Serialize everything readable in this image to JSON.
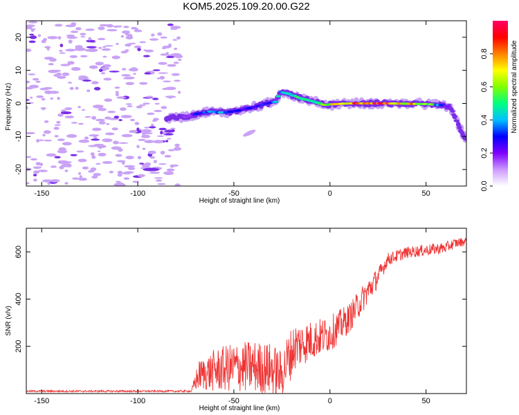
{
  "title": "KOM5.2025.109.20.00.G22",
  "colors": {
    "snr_line": "#ee3333",
    "spectrum_light": "#c9a3f5",
    "spectrum_mid": "#7a2ee8",
    "colorbar_stops": [
      "#ffffff",
      "#cc99ff",
      "#7f00ff",
      "#0000ff",
      "#00c0ff",
      "#00ff80",
      "#80ff00",
      "#ffff00",
      "#ff8000",
      "#ff0000",
      "#ff0066"
    ]
  },
  "chart_data": [
    {
      "type": "heatmap",
      "title": "KOM5.2025.109.20.00.G22",
      "xlabel": "Height of straight line (km)",
      "ylabel": "Frequency (Hz)",
      "xlim": [
        -158,
        71
      ],
      "ylim": [
        -25,
        25
      ],
      "xticks": [
        -150,
        -100,
        -50,
        0,
        50
      ],
      "xtick_labels": [
        "-150",
        "-100",
        "-50",
        "0",
        "50"
      ],
      "yticks": [
        20,
        10,
        0,
        -10,
        -20
      ],
      "ytick_labels": [
        "20",
        "10",
        "0",
        "-10",
        "-20"
      ],
      "colorbar": {
        "label": "Normalized spectral amplitude",
        "range": [
          0,
          1
        ],
        "ticks": [
          0.0,
          0.2,
          0.4,
          0.6,
          0.8
        ],
        "tick_labels": [
          "0.0",
          "0.2",
          "0.4",
          "0.6",
          "0.8"
        ]
      },
      "ridge": {
        "description_values": "frequency of spectral peak vs height",
        "x": [
          -85,
          -75,
          -68,
          -62,
          -55,
          -48,
          -40,
          -33,
          -28,
          -26,
          -22,
          -15,
          -8,
          -3,
          0,
          10,
          30,
          50,
          58,
          62,
          65,
          68,
          71
        ],
        "y": [
          -4.5,
          -4,
          -3,
          -2.5,
          -2.8,
          -2.2,
          -1.2,
          0,
          0.5,
          3.5,
          3,
          1.5,
          0.5,
          -0.5,
          -0.3,
          0,
          0,
          -0.2,
          -0.5,
          -1,
          -4,
          -8,
          -11
        ],
        "amplitude": [
          0.05,
          0.15,
          0.3,
          0.35,
          0.35,
          0.3,
          0.25,
          0.3,
          0.35,
          0.4,
          0.45,
          0.5,
          0.45,
          0.5,
          0.6,
          0.75,
          0.9,
          0.65,
          0.3,
          0.15,
          0.08,
          0.05,
          0.03
        ]
      },
      "noise_region_x": [
        -158,
        -78
      ]
    },
    {
      "type": "line",
      "xlabel": "Height of straight line (km)",
      "ylabel": "SNR (v/v)",
      "xlim": [
        -158,
        71
      ],
      "ylim": [
        0,
        700
      ],
      "xticks": [
        -150,
        -100,
        -50,
        0,
        50
      ],
      "xtick_labels": [
        "-150",
        "-100",
        "-50",
        "0",
        "50"
      ],
      "yticks": [
        200,
        400,
        600
      ],
      "ytick_labels": [
        "200",
        "400",
        "600"
      ],
      "series": [
        {
          "baseline_x": [
            -158,
            -72,
            -70,
            -68,
            -60,
            -50,
            -40,
            -30,
            -25,
            -22,
            -18,
            -10,
            0,
            10,
            20,
            25,
            30,
            40,
            50,
            60,
            65,
            71
          ],
          "baseline_y": [
            10,
            10,
            40,
            60,
            70,
            80,
            80,
            70,
            50,
            110,
            170,
            200,
            230,
            300,
            420,
            480,
            560,
            590,
            600,
            610,
            630,
            640
          ],
          "spread_y": [
            8,
            8,
            60,
            90,
            130,
            150,
            160,
            160,
            140,
            160,
            150,
            120,
            110,
            90,
            80,
            60,
            40,
            35,
            35,
            35,
            30,
            25
          ]
        }
      ]
    }
  ]
}
